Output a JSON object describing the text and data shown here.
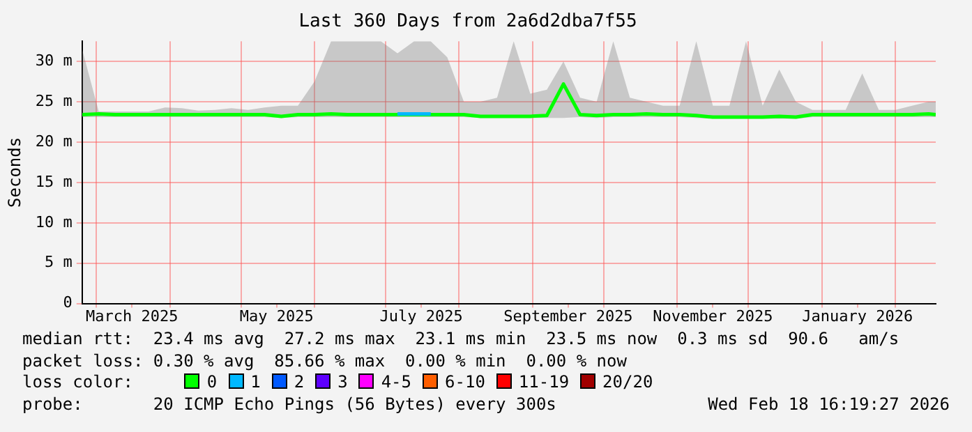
{
  "chart_data": {
    "type": "line",
    "title": "Last 360 Days from 2a6d2dba7f55",
    "ylabel": "Seconds",
    "x": [
      "2025-02-23",
      "2025-03-02",
      "2025-03-09",
      "2025-03-16",
      "2025-03-23",
      "2025-03-30",
      "2025-04-06",
      "2025-04-13",
      "2025-04-20",
      "2025-04-27",
      "2025-05-04",
      "2025-05-11",
      "2025-05-18",
      "2025-05-25",
      "2025-06-01",
      "2025-06-08",
      "2025-06-15",
      "2025-06-22",
      "2025-06-29",
      "2025-07-06",
      "2025-07-13",
      "2025-07-20",
      "2025-07-27",
      "2025-08-03",
      "2025-08-10",
      "2025-08-17",
      "2025-08-24",
      "2025-08-31",
      "2025-09-07",
      "2025-09-14",
      "2025-09-21",
      "2025-09-28",
      "2025-10-05",
      "2025-10-12",
      "2025-10-19",
      "2025-10-26",
      "2025-11-02",
      "2025-11-09",
      "2025-11-16",
      "2025-11-23",
      "2025-11-30",
      "2025-12-07",
      "2025-12-14",
      "2025-12-21",
      "2025-12-28",
      "2026-01-04",
      "2026-01-11",
      "2026-01-18",
      "2026-01-25",
      "2026-02-01",
      "2026-02-08",
      "2026-02-15",
      "2026-02-18"
    ],
    "series": [
      {
        "name": "0",
        "color": "#00ff00",
        "values": [
          23.4,
          23.5,
          23.4,
          23.4,
          23.4,
          23.4,
          23.4,
          23.4,
          23.4,
          23.4,
          23.4,
          23.4,
          23.2,
          23.4,
          23.4,
          23.5,
          23.4,
          23.4,
          23.4,
          23.4,
          23.4,
          23.4,
          23.4,
          23.4,
          23.2,
          23.2,
          23.2,
          23.2,
          23.3,
          27.2,
          23.4,
          23.3,
          23.4,
          23.4,
          23.5,
          23.4,
          23.4,
          23.3,
          23.1,
          23.1,
          23.1,
          23.1,
          23.2,
          23.1,
          23.4,
          23.4,
          23.4,
          23.4,
          23.4,
          23.4,
          23.4,
          23.5,
          23.4
        ],
        "lower": [
          23.1,
          23.1,
          23.1,
          23.1,
          23.1,
          23.1,
          23.1,
          23.1,
          23.1,
          23.1,
          23.1,
          23.1,
          23.0,
          23.1,
          23.1,
          23.1,
          23.1,
          23.1,
          23.1,
          23.1,
          23.1,
          23.1,
          23.1,
          23.1,
          23.0,
          23.0,
          23.0,
          23.0,
          23.0,
          23.0,
          23.1,
          23.0,
          23.1,
          23.1,
          23.1,
          23.1,
          23.1,
          23.0,
          22.9,
          22.9,
          22.9,
          22.9,
          22.9,
          22.9,
          23.1,
          23.1,
          23.1,
          23.1,
          23.1,
          23.1,
          23.1,
          23.1,
          23.1
        ],
        "upper": [
          31.5,
          23.8,
          23.8,
          23.8,
          23.8,
          24.3,
          24.2,
          23.9,
          24.0,
          24.2,
          24.0,
          24.3,
          24.5,
          24.5,
          27.5,
          32.5,
          32.5,
          32.5,
          32.5,
          31.0,
          32.5,
          32.5,
          30.5,
          25.0,
          25.0,
          25.5,
          32.5,
          26.0,
          26.5,
          30.0,
          25.5,
          25.0,
          32.5,
          25.5,
          25.0,
          24.5,
          24.5,
          32.5,
          24.5,
          24.5,
          32.5,
          24.5,
          29.0,
          25.0,
          24.0,
          24.0,
          24.0,
          28.5,
          24.0,
          24.0,
          24.5,
          25.0,
          25.0
        ]
      },
      {
        "name": "1",
        "color": "#00b8ff",
        "values": [
          null,
          null,
          null,
          null,
          null,
          null,
          null,
          null,
          null,
          null,
          null,
          null,
          null,
          null,
          null,
          null,
          null,
          null,
          null,
          23.5,
          23.5,
          23.5,
          null,
          null,
          null,
          null,
          null,
          null,
          null,
          null,
          null,
          null,
          null,
          null,
          null,
          null,
          null,
          null,
          null,
          null,
          null,
          null,
          null,
          null,
          null,
          null,
          null,
          null,
          null,
          null,
          null,
          null,
          null
        ]
      },
      {
        "name": "2",
        "color": "#0059ff",
        "values": [
          null,
          null,
          null,
          null,
          null,
          null,
          null,
          null,
          null,
          null,
          null,
          null,
          null,
          null,
          null,
          null,
          null,
          null,
          null,
          null,
          null,
          null,
          null,
          null,
          null,
          null,
          null,
          null,
          null,
          null,
          null,
          null,
          null,
          null,
          null,
          null,
          null,
          null,
          null,
          null,
          null,
          null,
          null,
          null,
          null,
          null,
          null,
          null,
          null,
          null,
          null,
          null,
          null
        ]
      },
      {
        "name": "3",
        "color": "#5e00ff",
        "values": [
          null,
          null,
          null,
          null,
          null,
          null,
          null,
          null,
          null,
          null,
          null,
          null,
          null,
          null,
          null,
          null,
          null,
          null,
          null,
          null,
          null,
          null,
          null,
          null,
          null,
          null,
          null,
          null,
          null,
          null,
          null,
          null,
          null,
          null,
          null,
          null,
          null,
          null,
          null,
          null,
          null,
          null,
          null,
          null,
          null,
          null,
          null,
          null,
          null,
          null,
          null,
          null,
          null
        ]
      },
      {
        "name": "4-5",
        "color": "#ff00ff",
        "values": [
          null,
          null,
          null,
          null,
          null,
          null,
          null,
          null,
          null,
          null,
          null,
          null,
          null,
          null,
          null,
          null,
          null,
          null,
          null,
          null,
          null,
          null,
          null,
          null,
          null,
          null,
          null,
          null,
          null,
          null,
          null,
          null,
          null,
          null,
          null,
          null,
          null,
          null,
          null,
          null,
          null,
          null,
          null,
          null,
          null,
          null,
          null,
          null,
          null,
          null,
          null,
          null,
          null
        ]
      },
      {
        "name": "6-10",
        "color": "#ff5e00",
        "values": [
          null,
          null,
          null,
          null,
          null,
          null,
          null,
          null,
          null,
          null,
          null,
          null,
          null,
          null,
          null,
          null,
          null,
          null,
          null,
          null,
          null,
          null,
          null,
          null,
          null,
          null,
          null,
          null,
          null,
          null,
          null,
          null,
          null,
          null,
          null,
          null,
          null,
          null,
          null,
          null,
          null,
          null,
          null,
          null,
          null,
          null,
          null,
          null,
          null,
          null,
          null,
          null,
          null
        ]
      },
      {
        "name": "11-19",
        "color": "#ff0000",
        "values": [
          null,
          null,
          null,
          null,
          null,
          null,
          null,
          null,
          null,
          null,
          null,
          null,
          null,
          null,
          null,
          null,
          null,
          null,
          null,
          null,
          null,
          null,
          null,
          null,
          null,
          null,
          null,
          null,
          null,
          null,
          null,
          null,
          null,
          null,
          null,
          null,
          null,
          null,
          null,
          null,
          null,
          null,
          null,
          null,
          null,
          null,
          null,
          null,
          null,
          null,
          null,
          null,
          null
        ]
      },
      {
        "name": "20/20",
        "color": "#a10000",
        "values": [
          null,
          null,
          null,
          null,
          null,
          null,
          null,
          null,
          null,
          null,
          null,
          null,
          null,
          null,
          null,
          null,
          null,
          null,
          null,
          null,
          null,
          null,
          null,
          null,
          null,
          null,
          null,
          null,
          null,
          null,
          null,
          null,
          null,
          null,
          null,
          null,
          null,
          null,
          null,
          null,
          null,
          null,
          null,
          null,
          null,
          null,
          null,
          null,
          null,
          null,
          null,
          null,
          null
        ]
      }
    ],
    "legend": "bottom",
    "legend_title": "loss color:",
    "xlim": [
      "2025-02-23",
      "2026-02-18"
    ],
    "xticks": [
      {
        "value": "2025-03-01",
        "label": null
      },
      {
        "value": "2025-03-16",
        "label": "March 2025"
      },
      {
        "value": "2025-04-01",
        "label": null
      },
      {
        "value": "2025-05-01",
        "label": null
      },
      {
        "value": "2025-05-16",
        "label": "May 2025"
      },
      {
        "value": "2025-06-01",
        "label": null
      },
      {
        "value": "2025-07-01",
        "label": null
      },
      {
        "value": "2025-07-16",
        "label": "July 2025"
      },
      {
        "value": "2025-08-01",
        "label": null
      },
      {
        "value": "2025-09-01",
        "label": null
      },
      {
        "value": "2025-09-16",
        "label": "September 2025"
      },
      {
        "value": "2025-10-01",
        "label": null
      },
      {
        "value": "2025-11-01",
        "label": null
      },
      {
        "value": "2025-11-16",
        "label": "November 2025"
      },
      {
        "value": "2025-12-01",
        "label": null
      },
      {
        "value": "2026-01-01",
        "label": null
      },
      {
        "value": "2026-01-16",
        "label": "January 2026"
      },
      {
        "value": "2026-02-01",
        "label": null
      }
    ],
    "ylim": [
      0,
      32.5
    ],
    "yticks": [
      0,
      {
        "value": 5,
        "label": "5 m"
      },
      {
        "value": 10,
        "label": "10 m"
      },
      {
        "value": 15,
        "label": "15 m"
      },
      {
        "value": 20,
        "label": "20 m"
      },
      {
        "value": 25,
        "label": "25 m"
      },
      {
        "value": 30,
        "label": "30 m"
      }
    ],
    "grid": true,
    "annotations": [
      "median rtt:  23.4 ms avg  27.2 ms max  23.1 ms min  23.5 ms now  0.3 ms sd  90.6   am/s",
      "packet loss: 0.30 % avg  85.66 % max  0.00 % min  0.00 % now",
      "probe:       20 ICMP Echo Pings (56 Bytes) every 300s",
      "Wed Feb 18 16:19:27 2026"
    ]
  }
}
